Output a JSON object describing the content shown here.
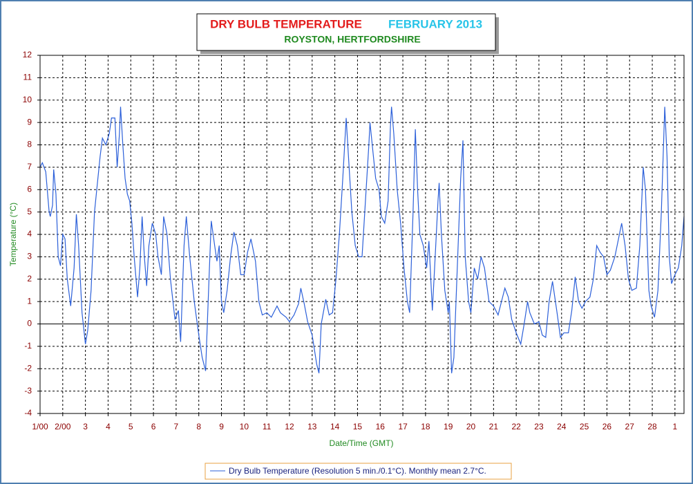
{
  "chart_data": {
    "type": "line",
    "title": "DRY BULB TEMPERATURE",
    "period": "FEBRUARY 2013",
    "subtitle": "ROYSTON, HERTFORDSHIRE",
    "x_label": "Date/Time (GMT)",
    "y_label": "Temperature (°C)",
    "xlim": [
      0,
      28.4
    ],
    "ylim": [
      -4,
      12
    ],
    "xticks": [
      {
        "value": 0,
        "label": "1/00"
      },
      {
        "value": 1,
        "label": "2/00"
      },
      {
        "value": 2,
        "label": "3"
      },
      {
        "value": 3,
        "label": "4"
      },
      {
        "value": 4,
        "label": "5"
      },
      {
        "value": 5,
        "label": "6"
      },
      {
        "value": 6,
        "label": "7"
      },
      {
        "value": 7,
        "label": "8"
      },
      {
        "value": 8,
        "label": "9"
      },
      {
        "value": 9,
        "label": "10"
      },
      {
        "value": 10,
        "label": "11"
      },
      {
        "value": 11,
        "label": "12"
      },
      {
        "value": 12,
        "label": "13"
      },
      {
        "value": 13,
        "label": "14"
      },
      {
        "value": 14,
        "label": "15"
      },
      {
        "value": 15,
        "label": "16"
      },
      {
        "value": 16,
        "label": "17"
      },
      {
        "value": 17,
        "label": "18"
      },
      {
        "value": 18,
        "label": "19"
      },
      {
        "value": 19,
        "label": "20"
      },
      {
        "value": 20,
        "label": "21"
      },
      {
        "value": 21,
        "label": "22"
      },
      {
        "value": 22,
        "label": "23"
      },
      {
        "value": 23,
        "label": "24"
      },
      {
        "value": 24,
        "label": "25"
      },
      {
        "value": 25,
        "label": "26"
      },
      {
        "value": 26,
        "label": "27"
      },
      {
        "value": 27,
        "label": "28"
      },
      {
        "value": 28,
        "label": "1"
      }
    ],
    "yticks": [
      -4,
      -3,
      -2,
      -1,
      0,
      1,
      2,
      3,
      4,
      5,
      6,
      7,
      8,
      9,
      10,
      11,
      12
    ],
    "grid": true,
    "legend": "bottom",
    "x": [
      0,
      0.1,
      0.25,
      0.4,
      0.45,
      0.55,
      0.6,
      0.7,
      0.8,
      0.9,
      1.0,
      1.1,
      1.2,
      1.35,
      1.5,
      1.6,
      1.7,
      1.85,
      2.0,
      2.1,
      2.25,
      2.4,
      2.5,
      2.65,
      2.75,
      2.9,
      3.05,
      3.15,
      3.3,
      3.4,
      3.5,
      3.55,
      3.65,
      3.75,
      3.85,
      3.95,
      4.05,
      4.15,
      4.3,
      4.4,
      4.5,
      4.6,
      4.7,
      4.8,
      4.95,
      5.1,
      5.2,
      5.35,
      5.45,
      5.6,
      5.75,
      5.95,
      6.1,
      6.2,
      6.35,
      6.45,
      6.6,
      6.8,
      7.0,
      7.15,
      7.3,
      7.45,
      7.55,
      7.7,
      7.8,
      7.9,
      8.0,
      8.1,
      8.25,
      8.4,
      8.55,
      8.7,
      8.85,
      9.0,
      9.15,
      9.3,
      9.5,
      9.65,
      9.8,
      10.0,
      10.2,
      10.45,
      10.6,
      10.85,
      11.0,
      11.2,
      11.4,
      11.5,
      11.65,
      11.8,
      12.0,
      12.2,
      12.3,
      12.4,
      12.6,
      12.75,
      12.9,
      13.05,
      13.2,
      13.35,
      13.5,
      13.6,
      13.75,
      13.9,
      14.05,
      14.2,
      14.35,
      14.5,
      14.55,
      14.7,
      14.8,
      14.95,
      15.05,
      15.2,
      15.35,
      15.45,
      15.5,
      15.6,
      15.75,
      15.9,
      16.05,
      16.2,
      16.3,
      16.45,
      16.55,
      16.65,
      16.75,
      16.9,
      17.05,
      17.15,
      17.3,
      17.4,
      17.55,
      17.6,
      17.7,
      17.85,
      18.0,
      18.05,
      18.15,
      18.25,
      18.4,
      18.55,
      18.65,
      18.75,
      18.9,
      19.0,
      19.15,
      19.3,
      19.45,
      19.6,
      19.8,
      20.0,
      20.2,
      20.35,
      20.5,
      20.65,
      20.8,
      21.0,
      21.2,
      21.35,
      21.5,
      21.6,
      21.8,
      22.0,
      22.15,
      22.3,
      22.45,
      22.6,
      22.8,
      22.95,
      23.1,
      23.3,
      23.45,
      23.6,
      23.75,
      23.9,
      24.05,
      24.25,
      24.4,
      24.55,
      24.7,
      24.85,
      25.0,
      25.15,
      25.35,
      25.55,
      25.65,
      25.8,
      25.95,
      26.1,
      26.3,
      26.45,
      26.6,
      26.7,
      26.85,
      26.95,
      27.1,
      27.25,
      27.4,
      27.55,
      27.65,
      27.75,
      27.85,
      28.0,
      28.15,
      28.3,
      28.4
    ],
    "series": [
      {
        "name": "Dry Bulb Temperature (Resolution 5 min./0.1°C). Monthly mean 2.7°C.",
        "color": "#2b5fd9",
        "values": [
          7.0,
          7.2,
          6.8,
          5.0,
          4.8,
          5.3,
          6.9,
          5.8,
          3.0,
          2.6,
          4.0,
          3.8,
          2.0,
          0.8,
          2.5,
          4.9,
          3.5,
          0.5,
          -0.9,
          -0.3,
          1.5,
          5.0,
          6.0,
          7.5,
          8.3,
          8.0,
          8.5,
          9.2,
          9.2,
          7.0,
          8.5,
          9.7,
          8.0,
          6.5,
          5.8,
          5.5,
          4.5,
          3.0,
          1.2,
          2.5,
          4.8,
          3.0,
          1.7,
          3.5,
          4.5,
          4.0,
          3.0,
          2.2,
          4.8,
          4.0,
          2.0,
          0.2,
          0.6,
          -0.8,
          3.5,
          4.8,
          3.0,
          1.0,
          -0.5,
          -1.5,
          -2.1,
          2.0,
          4.6,
          3.5,
          2.8,
          3.5,
          1.0,
          0.5,
          1.5,
          3.0,
          4.1,
          3.5,
          2.2,
          2.2,
          3.2,
          3.8,
          2.8,
          1.0,
          0.4,
          0.5,
          0.3,
          0.8,
          0.5,
          0.3,
          0.1,
          0.4,
          0.9,
          1.6,
          0.9,
          0.1,
          -0.5,
          -1.8,
          -2.2,
          0.0,
          1.1,
          0.4,
          0.5,
          2.0,
          4.0,
          6.5,
          9.2,
          7.5,
          5.0,
          3.5,
          3.0,
          3.0,
          5.5,
          8.0,
          9.0,
          7.5,
          6.5,
          6.0,
          4.8,
          4.5,
          5.5,
          8.8,
          9.7,
          8.5,
          6.0,
          4.5,
          2.5,
          1.0,
          0.5,
          5.0,
          8.7,
          6.0,
          4.0,
          3.5,
          2.5,
          3.7,
          0.6,
          2.5,
          5.5,
          6.3,
          4.0,
          1.5,
          0.5,
          1.0,
          -2.2,
          -1.5,
          2.5,
          6.5,
          8.2,
          3.0,
          1.0,
          0.5,
          2.5,
          2.0,
          3.0,
          2.5,
          1.0,
          0.8,
          0.4,
          1.0,
          1.6,
          1.2,
          0.2,
          -0.4,
          -0.9,
          0.0,
          1.0,
          0.5,
          0.0,
          0.1,
          -0.5,
          -0.6,
          1.0,
          1.9,
          0.5,
          -0.6,
          -0.4,
          -0.4,
          0.6,
          2.1,
          1.0,
          0.7,
          1.0,
          1.2,
          2.0,
          3.5,
          3.2,
          3.0,
          2.2,
          2.4,
          3.0,
          4.0,
          4.5,
          3.5,
          2.0,
          1.5,
          1.6,
          3.5,
          7.0,
          6.0,
          1.5,
          0.8,
          0.3,
          1.5,
          5.0,
          9.7,
          7.5,
          3.0,
          1.8,
          2.2,
          2.5,
          3.5,
          4.8
        ]
      }
    ]
  }
}
